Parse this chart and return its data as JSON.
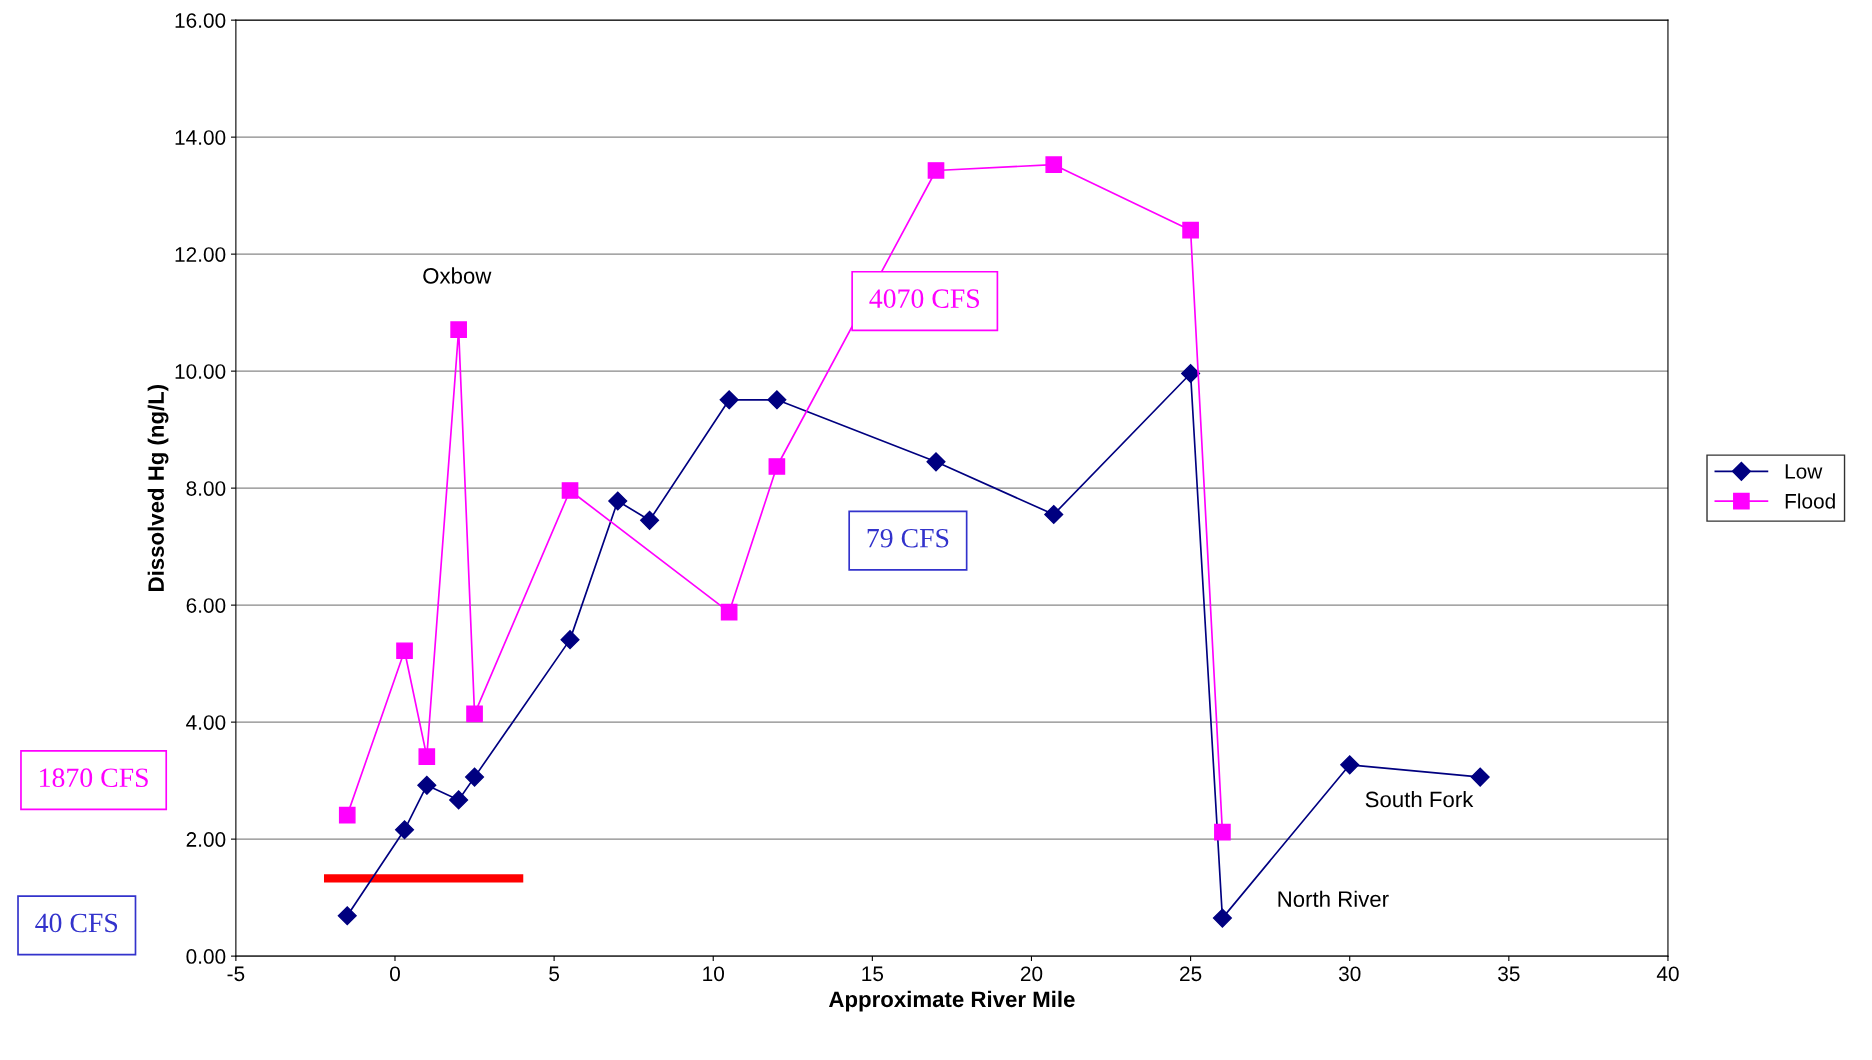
{
  "chart_data": {
    "type": "line",
    "xlabel": "Approximate River Mile",
    "ylabel": "Dissolved Hg (ng/L)",
    "xlim": [
      -5,
      40
    ],
    "xticks": [
      -5,
      0,
      5,
      10,
      15,
      20,
      25,
      30,
      35,
      40
    ],
    "ylim": [
      0,
      16
    ],
    "yticks": [
      {
        "value": 0,
        "label": "0.00"
      },
      {
        "value": 2,
        "label": "2.00"
      },
      {
        "value": 4,
        "label": "4.00"
      },
      {
        "value": 6,
        "label": "6.00"
      },
      {
        "value": 8,
        "label": "8.00"
      },
      {
        "value": 10,
        "label": "10.00"
      },
      {
        "value": 12,
        "label": "12.00"
      },
      {
        "value": 14,
        "label": "14.00"
      },
      {
        "value": 16,
        "label": "16.00"
      }
    ],
    "grid": "y",
    "legend": "right",
    "series": [
      {
        "name": "Low",
        "color": "#000080",
        "marker": "diamond",
        "x": [
          -1.5,
          0.3,
          1.0,
          2.0,
          2.5,
          5.5,
          7.0,
          8.0,
          10.5,
          12.0,
          17.0,
          20.7,
          25.0,
          26.0,
          30.0,
          34.1
        ],
        "values": [
          0.69,
          2.16,
          2.92,
          2.67,
          3.06,
          5.41,
          7.78,
          7.45,
          9.51,
          9.51,
          8.45,
          7.55,
          9.96,
          0.65,
          3.27,
          3.06
        ]
      },
      {
        "name": "Flood",
        "color": "#ff00ff",
        "marker": "square",
        "x": [
          -1.5,
          0.3,
          1.0,
          2.0,
          2.5,
          5.5,
          10.5,
          12.0,
          17.0,
          20.7,
          25.0,
          26.0
        ],
        "values": [
          2.41,
          5.22,
          3.41,
          10.71,
          4.14,
          7.96,
          5.88,
          8.37,
          13.43,
          13.53,
          12.41,
          2.12
        ]
      },
      {
        "color": "#ff0000",
        "marker": "none",
        "x": [
          -2.1,
          3.9
        ],
        "values": [
          1.33,
          1.33
        ]
      }
    ],
    "annotations": [
      "Oxbow",
      "4070 CFS",
      "79 CFS",
      "North River",
      "South Fork",
      "1870 CFS",
      "40 CFS"
    ]
  }
}
